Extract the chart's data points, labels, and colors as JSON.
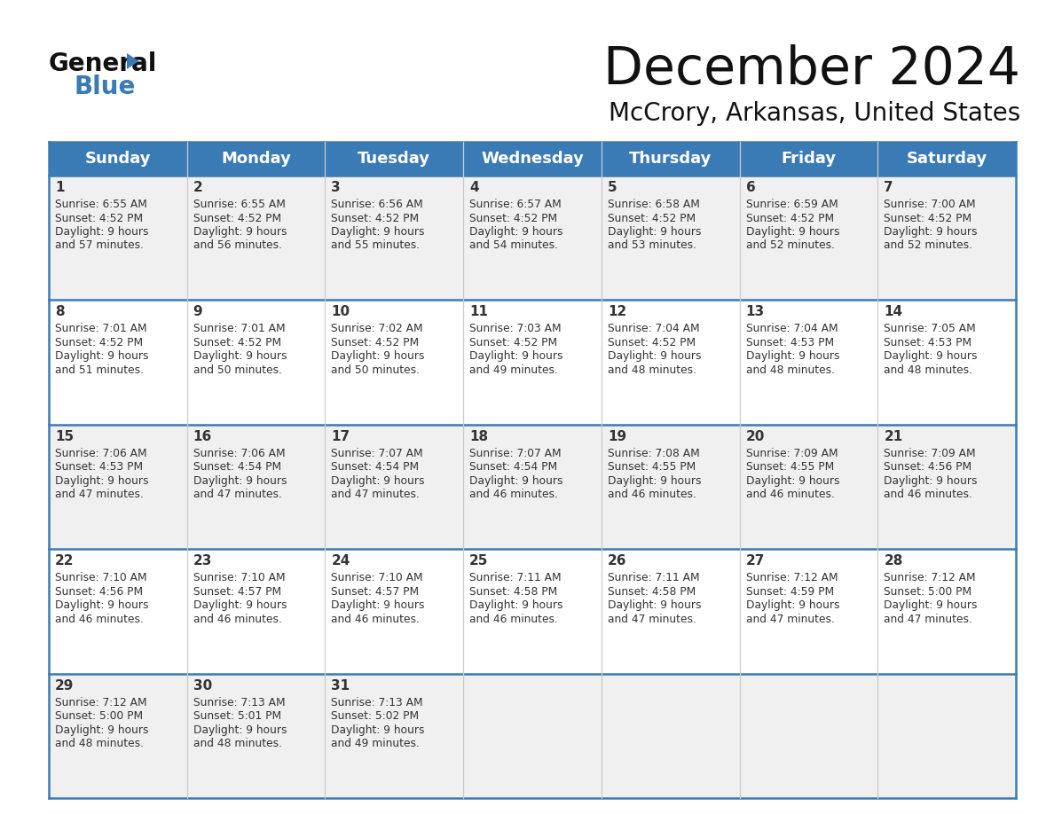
{
  "title": "December 2024",
  "subtitle": "McCrory, Arkansas, United States",
  "header_color": "#3a7ab5",
  "header_text_color": "#ffffff",
  "day_names": [
    "Sunday",
    "Monday",
    "Tuesday",
    "Wednesday",
    "Thursday",
    "Friday",
    "Saturday"
  ],
  "bg_color": "#ffffff",
  "cell_bg_even": "#f0f0f0",
  "cell_bg_odd": "#ffffff",
  "border_color": "#3a7ab5",
  "row_border_color": "#4a7ab0",
  "text_color": "#333333",
  "days": [
    {
      "day": 1,
      "col": 0,
      "row": 0,
      "sunrise": "6:55 AM",
      "sunset": "4:52 PM",
      "daylight": "9 hours and 57 minutes."
    },
    {
      "day": 2,
      "col": 1,
      "row": 0,
      "sunrise": "6:55 AM",
      "sunset": "4:52 PM",
      "daylight": "9 hours and 56 minutes."
    },
    {
      "day": 3,
      "col": 2,
      "row": 0,
      "sunrise": "6:56 AM",
      "sunset": "4:52 PM",
      "daylight": "9 hours and 55 minutes."
    },
    {
      "day": 4,
      "col": 3,
      "row": 0,
      "sunrise": "6:57 AM",
      "sunset": "4:52 PM",
      "daylight": "9 hours and 54 minutes."
    },
    {
      "day": 5,
      "col": 4,
      "row": 0,
      "sunrise": "6:58 AM",
      "sunset": "4:52 PM",
      "daylight": "9 hours and 53 minutes."
    },
    {
      "day": 6,
      "col": 5,
      "row": 0,
      "sunrise": "6:59 AM",
      "sunset": "4:52 PM",
      "daylight": "9 hours and 52 minutes."
    },
    {
      "day": 7,
      "col": 6,
      "row": 0,
      "sunrise": "7:00 AM",
      "sunset": "4:52 PM",
      "daylight": "9 hours and 52 minutes."
    },
    {
      "day": 8,
      "col": 0,
      "row": 1,
      "sunrise": "7:01 AM",
      "sunset": "4:52 PM",
      "daylight": "9 hours and 51 minutes."
    },
    {
      "day": 9,
      "col": 1,
      "row": 1,
      "sunrise": "7:01 AM",
      "sunset": "4:52 PM",
      "daylight": "9 hours and 50 minutes."
    },
    {
      "day": 10,
      "col": 2,
      "row": 1,
      "sunrise": "7:02 AM",
      "sunset": "4:52 PM",
      "daylight": "9 hours and 50 minutes."
    },
    {
      "day": 11,
      "col": 3,
      "row": 1,
      "sunrise": "7:03 AM",
      "sunset": "4:52 PM",
      "daylight": "9 hours and 49 minutes."
    },
    {
      "day": 12,
      "col": 4,
      "row": 1,
      "sunrise": "7:04 AM",
      "sunset": "4:52 PM",
      "daylight": "9 hours and 48 minutes."
    },
    {
      "day": 13,
      "col": 5,
      "row": 1,
      "sunrise": "7:04 AM",
      "sunset": "4:53 PM",
      "daylight": "9 hours and 48 minutes."
    },
    {
      "day": 14,
      "col": 6,
      "row": 1,
      "sunrise": "7:05 AM",
      "sunset": "4:53 PM",
      "daylight": "9 hours and 48 minutes."
    },
    {
      "day": 15,
      "col": 0,
      "row": 2,
      "sunrise": "7:06 AM",
      "sunset": "4:53 PM",
      "daylight": "9 hours and 47 minutes."
    },
    {
      "day": 16,
      "col": 1,
      "row": 2,
      "sunrise": "7:06 AM",
      "sunset": "4:54 PM",
      "daylight": "9 hours and 47 minutes."
    },
    {
      "day": 17,
      "col": 2,
      "row": 2,
      "sunrise": "7:07 AM",
      "sunset": "4:54 PM",
      "daylight": "9 hours and 47 minutes."
    },
    {
      "day": 18,
      "col": 3,
      "row": 2,
      "sunrise": "7:07 AM",
      "sunset": "4:54 PM",
      "daylight": "9 hours and 46 minutes."
    },
    {
      "day": 19,
      "col": 4,
      "row": 2,
      "sunrise": "7:08 AM",
      "sunset": "4:55 PM",
      "daylight": "9 hours and 46 minutes."
    },
    {
      "day": 20,
      "col": 5,
      "row": 2,
      "sunrise": "7:09 AM",
      "sunset": "4:55 PM",
      "daylight": "9 hours and 46 minutes."
    },
    {
      "day": 21,
      "col": 6,
      "row": 2,
      "sunrise": "7:09 AM",
      "sunset": "4:56 PM",
      "daylight": "9 hours and 46 minutes."
    },
    {
      "day": 22,
      "col": 0,
      "row": 3,
      "sunrise": "7:10 AM",
      "sunset": "4:56 PM",
      "daylight": "9 hours and 46 minutes."
    },
    {
      "day": 23,
      "col": 1,
      "row": 3,
      "sunrise": "7:10 AM",
      "sunset": "4:57 PM",
      "daylight": "9 hours and 46 minutes."
    },
    {
      "day": 24,
      "col": 2,
      "row": 3,
      "sunrise": "7:10 AM",
      "sunset": "4:57 PM",
      "daylight": "9 hours and 46 minutes."
    },
    {
      "day": 25,
      "col": 3,
      "row": 3,
      "sunrise": "7:11 AM",
      "sunset": "4:58 PM",
      "daylight": "9 hours and 46 minutes."
    },
    {
      "day": 26,
      "col": 4,
      "row": 3,
      "sunrise": "7:11 AM",
      "sunset": "4:58 PM",
      "daylight": "9 hours and 47 minutes."
    },
    {
      "day": 27,
      "col": 5,
      "row": 3,
      "sunrise": "7:12 AM",
      "sunset": "4:59 PM",
      "daylight": "9 hours and 47 minutes."
    },
    {
      "day": 28,
      "col": 6,
      "row": 3,
      "sunrise": "7:12 AM",
      "sunset": "5:00 PM",
      "daylight": "9 hours and 47 minutes."
    },
    {
      "day": 29,
      "col": 0,
      "row": 4,
      "sunrise": "7:12 AM",
      "sunset": "5:00 PM",
      "daylight": "9 hours and 48 minutes."
    },
    {
      "day": 30,
      "col": 1,
      "row": 4,
      "sunrise": "7:13 AM",
      "sunset": "5:01 PM",
      "daylight": "9 hours and 48 minutes."
    },
    {
      "day": 31,
      "col": 2,
      "row": 4,
      "sunrise": "7:13 AM",
      "sunset": "5:02 PM",
      "daylight": "9 hours and 49 minutes."
    }
  ]
}
